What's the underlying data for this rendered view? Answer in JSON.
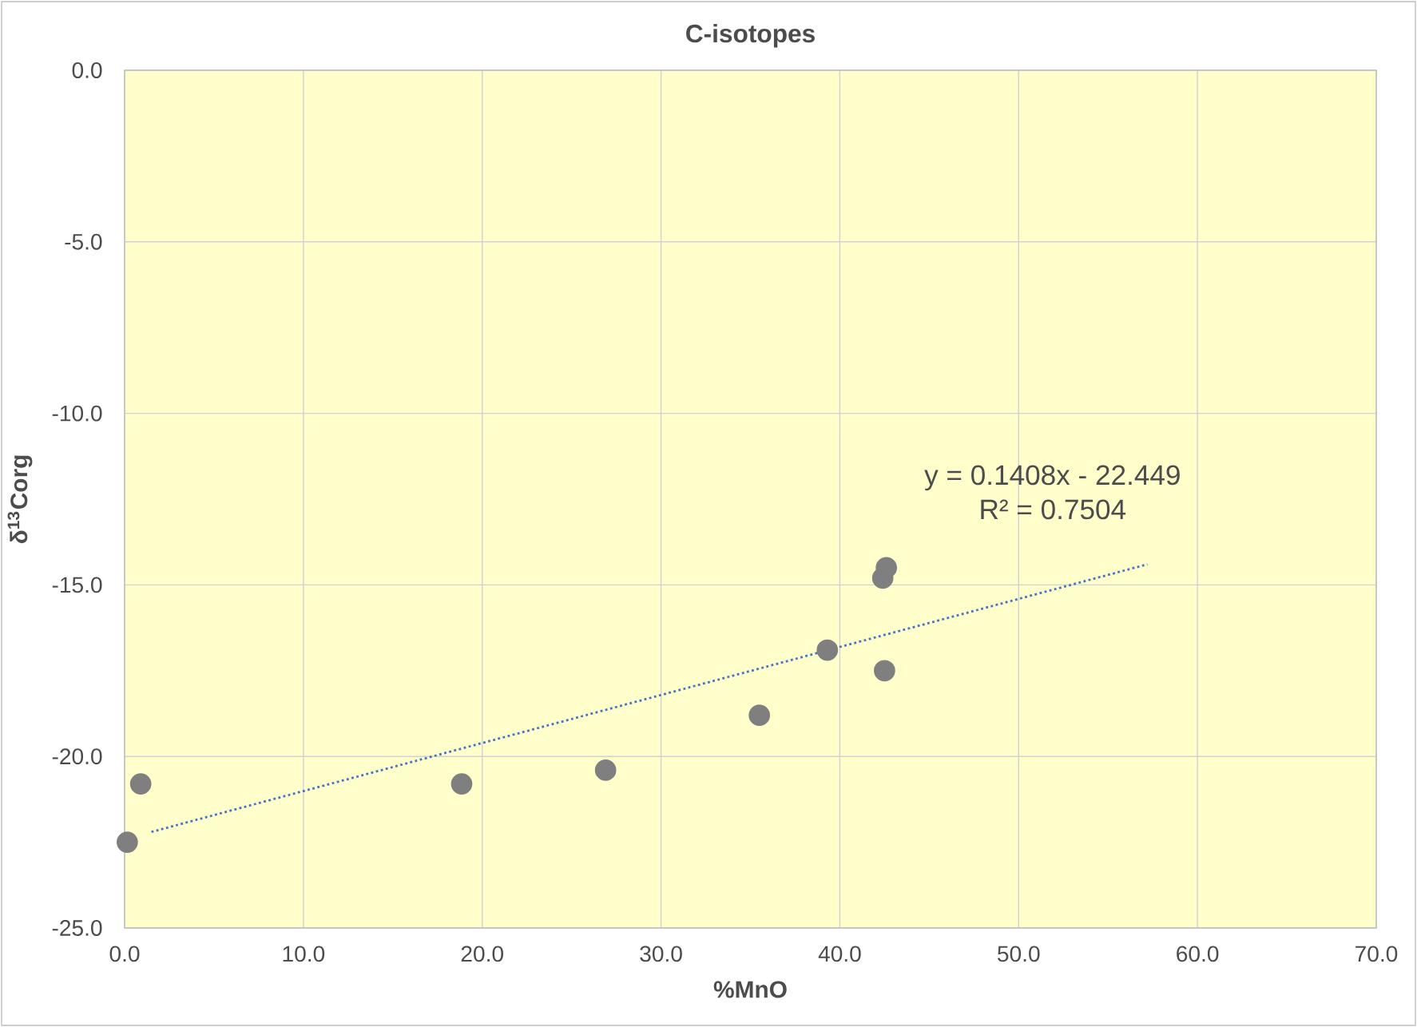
{
  "chart_data": {
    "type": "scatter",
    "title": "C-isotopes",
    "xlabel": "%MnO",
    "ylabel": "δ$^{13}$Corg",
    "xlim": [
      0,
      70
    ],
    "ylim": [
      -25,
      0
    ],
    "xticks": [
      {
        "value": 0,
        "label": "0.0"
      },
      {
        "value": 10,
        "label": "10.0"
      },
      {
        "value": 20,
        "label": "20.0"
      },
      {
        "value": 30,
        "label": "30.0"
      },
      {
        "value": 40,
        "label": "40.0"
      },
      {
        "value": 50,
        "label": "50.0"
      },
      {
        "value": 60,
        "label": "60.0"
      },
      {
        "value": 70,
        "label": "70.0"
      }
    ],
    "yticks": [
      {
        "value": -25,
        "label": "-25.0"
      },
      {
        "value": -20,
        "label": "-20.0"
      },
      {
        "value": -15,
        "label": "-15.0"
      },
      {
        "value": -10,
        "label": "-10.0"
      },
      {
        "value": -5,
        "label": "-5.0"
      },
      {
        "value": 0,
        "label": "0.0"
      }
    ],
    "grid": true,
    "series": [
      {
        "color": "#7f7f7f",
        "marker": "circle",
        "x": [
          0.15,
          0.9,
          18.85,
          26.9,
          35.5,
          39.3,
          42.4,
          42.6,
          42.5
        ],
        "values": [
          -22.5,
          -20.8,
          -20.8,
          -20.4,
          -18.8,
          -16.9,
          -14.8,
          -14.5,
          -17.5
        ]
      },
      {
        "type": "line",
        "color": "#4472c4",
        "marker": "none",
        "line_style": "dotted",
        "x": [
          1.5,
          57.2
        ],
        "values": [
          -22.2,
          -14.4
        ]
      }
    ],
    "annotations": [
      "y = 0.1408x - 22.449",
      "R² = 0.7504"
    ]
  }
}
